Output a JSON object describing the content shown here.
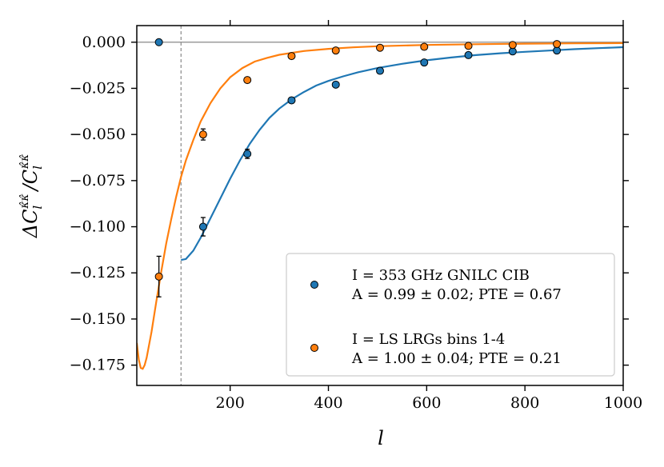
{
  "chart_data": {
    "type": "scatter",
    "xlabel": "l",
    "ylabel": "ΔC_l^{κ̂κ̂} / C_l^{κ̂κ̂}",
    "xlim": [
      10,
      1000
    ],
    "ylim": [
      -0.186,
      0.009
    ],
    "xticks": [
      200,
      400,
      600,
      800,
      1000
    ],
    "xtick_labels": [
      "200",
      "400",
      "600",
      "800",
      "1000"
    ],
    "yticks": [
      0.0,
      -0.025,
      -0.05,
      -0.075,
      -0.1,
      -0.125,
      -0.15,
      -0.175
    ],
    "ytick_labels": [
      "0.000",
      "−0.025",
      "−0.050",
      "−0.075",
      "−0.100",
      "−0.125",
      "−0.150",
      "−0.175"
    ],
    "l_min_marker": 100,
    "zero_line": 0.0,
    "series": [
      {
        "name": "I = 353 GHz GNILC CIB",
        "stats": "A = 0.99 ± 0.02; PTE = 0.67",
        "color": "#1f77b4",
        "x": [
          55,
          145,
          235,
          325,
          415,
          505,
          595,
          685,
          775,
          865
        ],
        "y": [
          0.0,
          -0.1,
          -0.0605,
          -0.0315,
          -0.023,
          -0.0155,
          -0.011,
          -0.007,
          -0.005,
          -0.0045
        ],
        "yerr": [
          0.0,
          0.005,
          0.0025,
          0.0015,
          0.001,
          0.001,
          0.001,
          0.001,
          0.001,
          0.001
        ],
        "curve_x": [
          100,
          110,
          125,
          140,
          155,
          170,
          185,
          200,
          220,
          240,
          260,
          280,
          300,
          325,
          350,
          375,
          400,
          430,
          460,
          500,
          550,
          600,
          650,
          700,
          750,
          800,
          850,
          900,
          950,
          1000
        ],
        "curve_y": [
          -0.118,
          -0.1175,
          -0.113,
          -0.106,
          -0.098,
          -0.09,
          -0.082,
          -0.074,
          -0.064,
          -0.055,
          -0.0475,
          -0.041,
          -0.036,
          -0.031,
          -0.027,
          -0.0235,
          -0.021,
          -0.0185,
          -0.0163,
          -0.014,
          -0.0117,
          -0.0098,
          -0.0083,
          -0.007,
          -0.006,
          -0.0052,
          -0.0045,
          -0.0038,
          -0.0032,
          -0.0027
        ]
      },
      {
        "name": "I = LS LRGs bins 1-4",
        "stats": "A = 1.00 ± 0.04; PTE = 0.21",
        "color": "#ff7f0e",
        "x": [
          55,
          145,
          235,
          325,
          415,
          505,
          595,
          685,
          775,
          865
        ],
        "y": [
          -0.127,
          -0.05,
          -0.0205,
          -0.0075,
          -0.0045,
          -0.003,
          -0.0025,
          -0.002,
          -0.0015,
          -0.001
        ],
        "yerr": [
          0.011,
          0.003,
          0.001,
          0.001,
          0.001,
          0.001,
          0.001,
          0.001,
          0.001,
          0.001
        ],
        "curve_x": [
          10,
          14,
          18,
          22,
          26,
          30,
          40,
          50,
          60,
          70,
          80,
          90,
          100,
          110,
          125,
          140,
          160,
          180,
          200,
          225,
          250,
          275,
          300,
          350,
          400,
          450,
          500,
          600,
          700,
          800,
          900,
          1000
        ],
        "curve_y": [
          -0.163,
          -0.172,
          -0.1765,
          -0.177,
          -0.175,
          -0.171,
          -0.157,
          -0.14,
          -0.124,
          -0.109,
          -0.096,
          -0.084,
          -0.073,
          -0.064,
          -0.053,
          -0.043,
          -0.033,
          -0.025,
          -0.019,
          -0.014,
          -0.0105,
          -0.0085,
          -0.0068,
          -0.0048,
          -0.0036,
          -0.0028,
          -0.0022,
          -0.0015,
          -0.0011,
          -0.0008,
          -0.0006,
          -0.0005
        ]
      }
    ]
  }
}
